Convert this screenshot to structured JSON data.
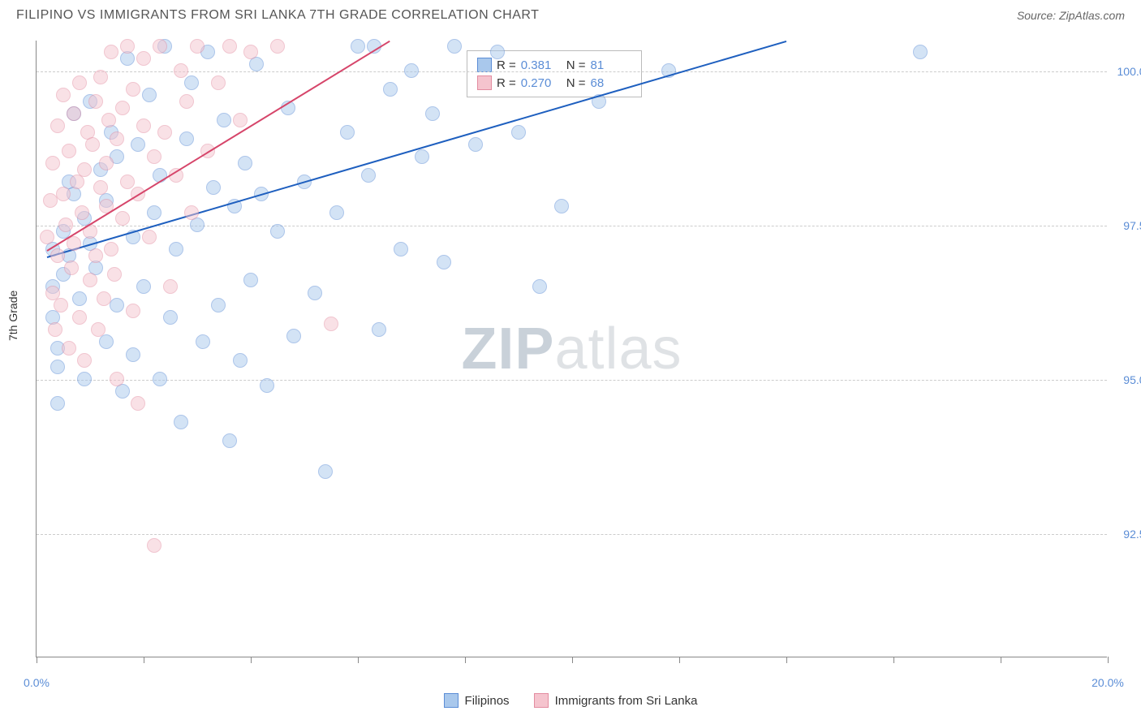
{
  "header": {
    "title": "FILIPINO VS IMMIGRANTS FROM SRI LANKA 7TH GRADE CORRELATION CHART",
    "source": "Source: ZipAtlas.com"
  },
  "watermark": {
    "bold": "ZIP",
    "light": "atlas"
  },
  "chart": {
    "type": "scatter",
    "ylabel": "7th Grade",
    "xlim": [
      0,
      20
    ],
    "ylim": [
      90.5,
      100.5
    ],
    "xtick_positions": [
      0,
      2,
      4,
      6,
      8,
      10,
      12,
      14,
      16,
      18,
      20
    ],
    "xtick_labels_shown": {
      "0": "0.0%",
      "20": "20.0%"
    },
    "ytick_positions": [
      92.5,
      95.0,
      97.5,
      100.0
    ],
    "ytick_labels": [
      "92.5%",
      "95.0%",
      "97.5%",
      "100.0%"
    ],
    "grid_color": "#cccccc",
    "axis_color": "#888888",
    "background_color": "#ffffff",
    "label_fontsize": 14,
    "tick_color": "#5b8dd6",
    "marker_radius": 9,
    "marker_opacity": 0.5,
    "series": [
      {
        "name": "Filipinos",
        "fill_color": "#a9c8ec",
        "stroke_color": "#5b8dd6",
        "trend_color": "#1e5fbf",
        "trend": {
          "x1": 0.2,
          "y1": 97.0,
          "x2": 14.0,
          "y2": 100.5
        },
        "R": "0.381",
        "N": "81",
        "points": [
          [
            0.3,
            97.1
          ],
          [
            0.3,
            96.5
          ],
          [
            0.3,
            96.0
          ],
          [
            0.4,
            95.2
          ],
          [
            0.4,
            95.5
          ],
          [
            0.4,
            94.6
          ],
          [
            0.5,
            97.4
          ],
          [
            0.5,
            96.7
          ],
          [
            0.6,
            98.2
          ],
          [
            0.6,
            97.0
          ],
          [
            0.7,
            99.3
          ],
          [
            0.7,
            98.0
          ],
          [
            0.8,
            96.3
          ],
          [
            0.9,
            97.6
          ],
          [
            0.9,
            95.0
          ],
          [
            1.0,
            99.5
          ],
          [
            1.0,
            97.2
          ],
          [
            1.1,
            96.8
          ],
          [
            1.2,
            98.4
          ],
          [
            1.3,
            95.6
          ],
          [
            1.3,
            97.9
          ],
          [
            1.4,
            99.0
          ],
          [
            1.5,
            98.6
          ],
          [
            1.5,
            96.2
          ],
          [
            1.6,
            94.8
          ],
          [
            1.7,
            100.2
          ],
          [
            1.8,
            97.3
          ],
          [
            1.8,
            95.4
          ],
          [
            1.9,
            98.8
          ],
          [
            2.0,
            96.5
          ],
          [
            2.1,
            99.6
          ],
          [
            2.2,
            97.7
          ],
          [
            2.3,
            95.0
          ],
          [
            2.3,
            98.3
          ],
          [
            2.4,
            100.4
          ],
          [
            2.5,
            96.0
          ],
          [
            2.6,
            97.1
          ],
          [
            2.7,
            94.3
          ],
          [
            2.8,
            98.9
          ],
          [
            2.9,
            99.8
          ],
          [
            3.0,
            97.5
          ],
          [
            3.1,
            95.6
          ],
          [
            3.2,
            100.3
          ],
          [
            3.3,
            98.1
          ],
          [
            3.4,
            96.2
          ],
          [
            3.5,
            99.2
          ],
          [
            3.6,
            94.0
          ],
          [
            3.7,
            97.8
          ],
          [
            3.8,
            95.3
          ],
          [
            3.9,
            98.5
          ],
          [
            4.0,
            96.6
          ],
          [
            4.1,
            100.1
          ],
          [
            4.2,
            98.0
          ],
          [
            4.3,
            94.9
          ],
          [
            4.5,
            97.4
          ],
          [
            4.7,
            99.4
          ],
          [
            4.8,
            95.7
          ],
          [
            5.0,
            98.2
          ],
          [
            5.2,
            96.4
          ],
          [
            5.4,
            93.5
          ],
          [
            5.6,
            97.7
          ],
          [
            5.8,
            99.0
          ],
          [
            6.0,
            100.4
          ],
          [
            6.2,
            98.3
          ],
          [
            6.4,
            95.8
          ],
          [
            6.6,
            99.7
          ],
          [
            6.8,
            97.1
          ],
          [
            7.0,
            100.0
          ],
          [
            7.2,
            98.6
          ],
          [
            7.4,
            99.3
          ],
          [
            7.6,
            96.9
          ],
          [
            7.8,
            100.4
          ],
          [
            8.2,
            98.8
          ],
          [
            8.6,
            100.3
          ],
          [
            9.0,
            99.0
          ],
          [
            9.4,
            96.5
          ],
          [
            9.8,
            97.8
          ],
          [
            10.5,
            99.5
          ],
          [
            11.8,
            100.0
          ],
          [
            16.5,
            100.3
          ],
          [
            6.3,
            100.4
          ]
        ]
      },
      {
        "name": "Immigrants from Sri Lanka",
        "fill_color": "#f5c4ce",
        "stroke_color": "#e38ca0",
        "trend_color": "#d6456a",
        "trend": {
          "x1": 0.2,
          "y1": 97.1,
          "x2": 6.6,
          "y2": 100.5
        },
        "R": "0.270",
        "N": "68",
        "points": [
          [
            0.2,
            97.3
          ],
          [
            0.25,
            97.9
          ],
          [
            0.3,
            96.4
          ],
          [
            0.3,
            98.5
          ],
          [
            0.35,
            95.8
          ],
          [
            0.4,
            99.1
          ],
          [
            0.4,
            97.0
          ],
          [
            0.45,
            96.2
          ],
          [
            0.5,
            98.0
          ],
          [
            0.5,
            99.6
          ],
          [
            0.55,
            97.5
          ],
          [
            0.6,
            95.5
          ],
          [
            0.6,
            98.7
          ],
          [
            0.65,
            96.8
          ],
          [
            0.7,
            99.3
          ],
          [
            0.7,
            97.2
          ],
          [
            0.75,
            98.2
          ],
          [
            0.8,
            96.0
          ],
          [
            0.8,
            99.8
          ],
          [
            0.85,
            97.7
          ],
          [
            0.9,
            98.4
          ],
          [
            0.9,
            95.3
          ],
          [
            0.95,
            99.0
          ],
          [
            1.0,
            97.4
          ],
          [
            1.0,
            96.6
          ],
          [
            1.05,
            98.8
          ],
          [
            1.1,
            99.5
          ],
          [
            1.1,
            97.0
          ],
          [
            1.15,
            95.8
          ],
          [
            1.2,
            98.1
          ],
          [
            1.2,
            99.9
          ],
          [
            1.25,
            96.3
          ],
          [
            1.3,
            97.8
          ],
          [
            1.3,
            98.5
          ],
          [
            1.35,
            99.2
          ],
          [
            1.4,
            97.1
          ],
          [
            1.4,
            100.3
          ],
          [
            1.45,
            96.7
          ],
          [
            1.5,
            98.9
          ],
          [
            1.5,
            95.0
          ],
          [
            1.6,
            99.4
          ],
          [
            1.6,
            97.6
          ],
          [
            1.7,
            98.2
          ],
          [
            1.7,
            100.4
          ],
          [
            1.8,
            96.1
          ],
          [
            1.8,
            99.7
          ],
          [
            1.9,
            94.6
          ],
          [
            1.9,
            98.0
          ],
          [
            2.0,
            99.1
          ],
          [
            2.0,
            100.2
          ],
          [
            2.1,
            97.3
          ],
          [
            2.2,
            98.6
          ],
          [
            2.3,
            100.4
          ],
          [
            2.4,
            99.0
          ],
          [
            2.5,
            96.5
          ],
          [
            2.6,
            98.3
          ],
          [
            2.7,
            100.0
          ],
          [
            2.8,
            99.5
          ],
          [
            2.9,
            97.7
          ],
          [
            3.0,
            100.4
          ],
          [
            3.2,
            98.7
          ],
          [
            3.4,
            99.8
          ],
          [
            3.6,
            100.4
          ],
          [
            3.8,
            99.2
          ],
          [
            4.0,
            100.3
          ],
          [
            4.5,
            100.4
          ],
          [
            5.5,
            95.9
          ],
          [
            2.2,
            92.3
          ]
        ]
      }
    ]
  },
  "corr_legend": {
    "R_label": "R =",
    "N_label": "N ="
  },
  "bottom_legend": {
    "items": [
      "Filipinos",
      "Immigrants from Sri Lanka"
    ]
  }
}
